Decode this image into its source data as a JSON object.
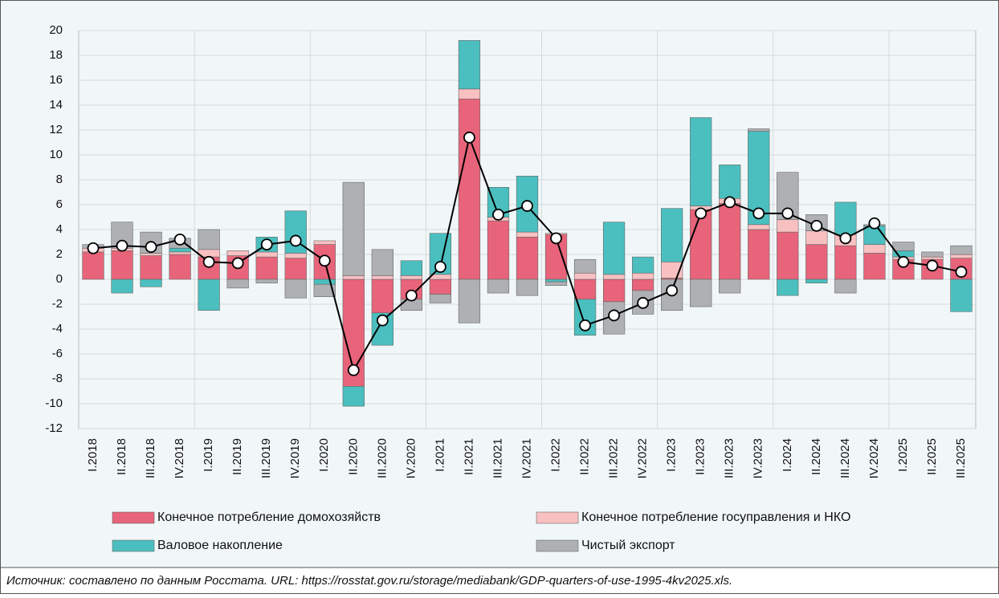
{
  "chart_data": {
    "type": "stacked_bar_line",
    "categories": [
      "I.2018",
      "II.2018",
      "III.2018",
      "IV.2018",
      "I.2019",
      "II.2019",
      "III.2019",
      "IV.2019",
      "I.2020",
      "II.2020",
      "III.2020",
      "IV.2020",
      "I.2021",
      "II.2021",
      "III.2021",
      "IV.2021",
      "I.2022",
      "II.2022",
      "III.2022",
      "IV.2022",
      "I.2023",
      "II.2023",
      "III.2023",
      "IV.2023",
      "I.2024",
      "II.2024",
      "III.2024",
      "IV.2024",
      "I.2025",
      "II.2025",
      "III.2025"
    ],
    "series": [
      {
        "name": "Конечное потребление домохозяйств",
        "color": "#e8647a",
        "values": [
          2.2,
          2.3,
          1.9,
          2.0,
          1.8,
          1.9,
          1.8,
          1.7,
          2.8,
          -8.6,
          -2.7,
          -1.6,
          -1.2,
          14.5,
          4.7,
          3.4,
          3.6,
          -1.6,
          -1.8,
          -0.9,
          0.1,
          5.6,
          6.1,
          4.0,
          3.8,
          2.8,
          2.7,
          2.1,
          1.6,
          1.6,
          1.7
        ]
      },
      {
        "name": "Конечное потребление госуправления и НКО",
        "color": "#f9c0c2",
        "values": [
          0.3,
          0.2,
          0.2,
          0.2,
          0.6,
          0.4,
          0.4,
          0.4,
          0.3,
          0.3,
          0.3,
          0.3,
          0.4,
          0.8,
          0.3,
          0.4,
          0.1,
          0.5,
          0.4,
          0.5,
          1.3,
          0.3,
          0.4,
          0.4,
          1.0,
          1.1,
          0.9,
          0.7,
          0.2,
          0.2,
          0.3
        ]
      },
      {
        "name": "Валовое накопление",
        "color": "#4bbfbf",
        "values": [
          0.0,
          -1.1,
          -0.6,
          0.3,
          -2.5,
          0.0,
          1.2,
          3.4,
          -0.4,
          -1.6,
          -2.6,
          1.2,
          3.3,
          3.9,
          2.4,
          4.5,
          -0.2,
          -2.9,
          4.2,
          1.3,
          4.3,
          7.1,
          2.7,
          7.5,
          -1.3,
          -0.3,
          2.6,
          1.5,
          0.5,
          0.0,
          -2.6
        ]
      },
      {
        "name": "Чистый экспорт",
        "color": "#aeb0b3",
        "values": [
          0.3,
          2.1,
          1.7,
          0.8,
          1.6,
          -0.7,
          -0.3,
          -1.5,
          -1.0,
          7.5,
          2.1,
          -0.9,
          -0.7,
          -3.5,
          -1.1,
          -1.3,
          -0.3,
          1.1,
          -2.6,
          -1.9,
          -2.5,
          -2.2,
          -1.1,
          0.2,
          3.8,
          1.3,
          -1.1,
          0.1,
          0.7,
          0.4,
          0.7
        ]
      }
    ],
    "line": {
      "color": "#000000",
      "values": [
        2.5,
        2.7,
        2.6,
        3.2,
        1.4,
        1.3,
        2.8,
        3.1,
        1.5,
        -7.3,
        -3.3,
        -1.3,
        1.0,
        11.4,
        5.2,
        5.9,
        3.3,
        -3.7,
        -2.9,
        -1.9,
        -0.9,
        5.3,
        6.2,
        5.3,
        5.3,
        4.3,
        3.3,
        4.5,
        1.4,
        1.1,
        0.6
      ]
    },
    "ylim": [
      -12,
      20
    ],
    "yticks": [
      -12,
      -10,
      -8,
      -6,
      -4,
      -2,
      0,
      2,
      4,
      6,
      8,
      10,
      12,
      14,
      16,
      18,
      20
    ],
    "grid": true,
    "source": "Источник: составлено по данным Росстата. URL: https://rosstat.gov.ru/storage/mediabank/GDP-quarters-of-use-1995-4kv2025.xls."
  }
}
